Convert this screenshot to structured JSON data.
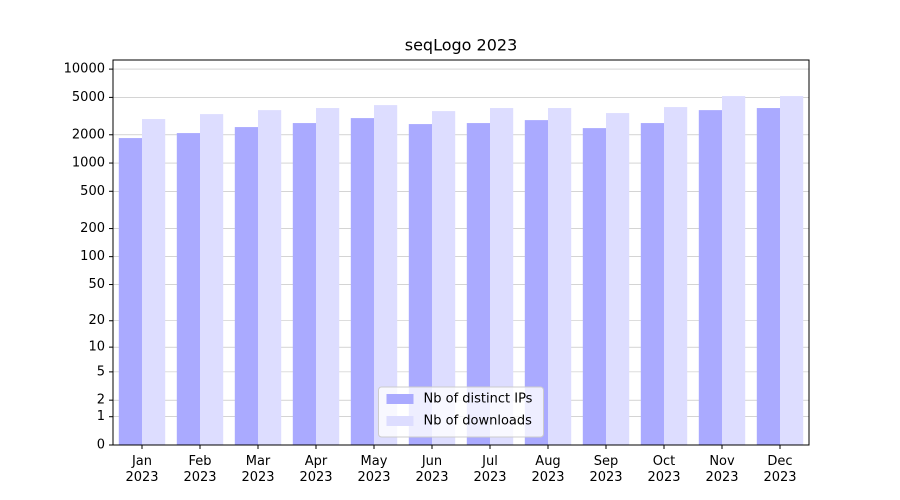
{
  "chart_data": {
    "type": "bar",
    "title": "seqLogo 2023",
    "categories": [
      "Jan\n2023",
      "Feb\n2023",
      "Mar\n2023",
      "Apr\n2023",
      "May\n2023",
      "Jun\n2023",
      "Jul\n2023",
      "Aug\n2023",
      "Sep\n2023",
      "Oct\n2023",
      "Nov\n2023",
      "Dec\n2023"
    ],
    "series": [
      {
        "name": "Nb of distinct IPs",
        "color": "#aaaaff",
        "values": [
          1845,
          2085,
          2415,
          2665,
          3010,
          2600,
          2665,
          2865,
          2355,
          2665,
          3660,
          3850
        ]
      },
      {
        "name": "Nb of downloads",
        "color": "#ddddff",
        "values": [
          2940,
          3320,
          3660,
          3850,
          4140,
          3575,
          3850,
          3850,
          3405,
          3945,
          5165,
          5165
        ]
      }
    ],
    "yscale": "log1p",
    "ylim": [
      0,
      12500
    ],
    "yticks": [
      0,
      1,
      2,
      5,
      10,
      20,
      50,
      100,
      200,
      500,
      1000,
      2000,
      5000,
      10000
    ],
    "grid": true,
    "legend": "lower center"
  }
}
